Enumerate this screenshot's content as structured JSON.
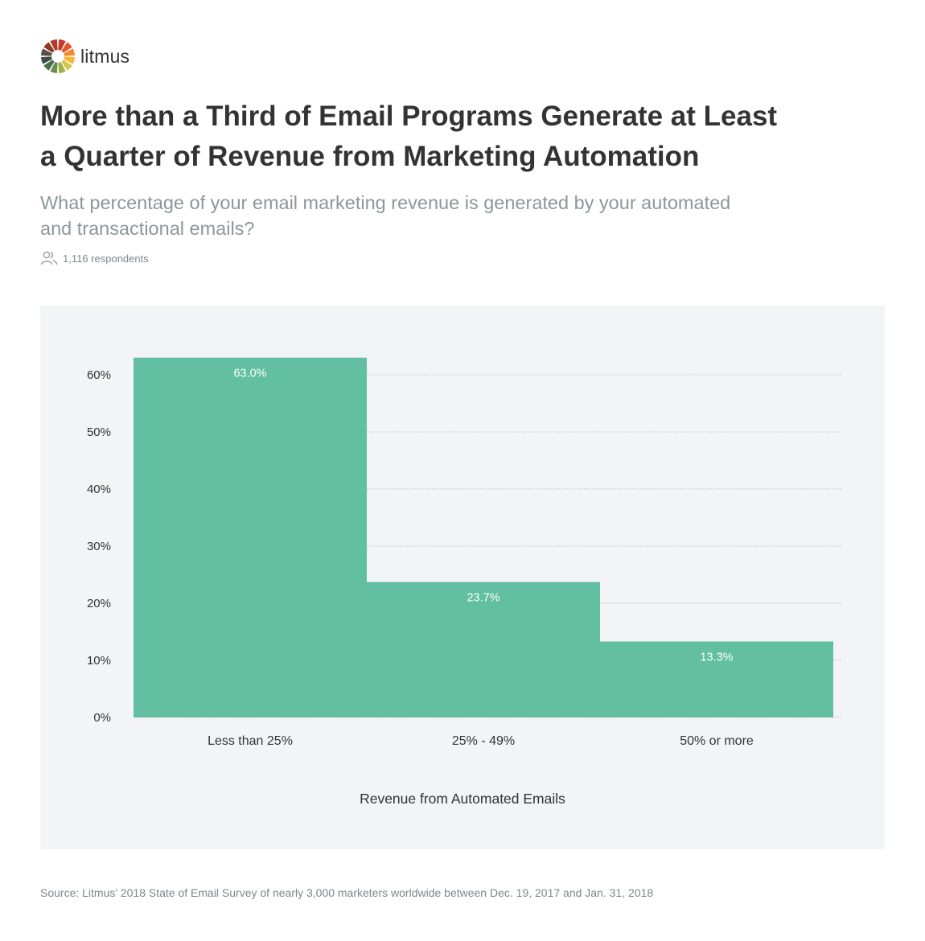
{
  "brand": {
    "name": "litmus",
    "logo_colors": [
      "#c0392b",
      "#e5552d",
      "#f08a2c",
      "#f4b63a",
      "#d8c44a",
      "#9cb146",
      "#6b8e4e",
      "#4f6b49",
      "#3f4f45",
      "#5a4f44",
      "#8a3a2c",
      "#b23a2a"
    ]
  },
  "title_lines": [
    "More than a Third of Email Programs Generate at Least",
    "a Quarter of Revenue from Marketing Automation"
  ],
  "subtitle_lines": [
    "What percentage of your email marketing revenue is generated by your automated",
    "and transactional emails?"
  ],
  "respondents": {
    "icon": "users-icon",
    "text": "1,116 respondents"
  },
  "chart_data": {
    "type": "bar",
    "title": "More than a Third of Email Programs Generate at Least a Quarter of Revenue from Marketing Automation",
    "categories": [
      "Less than 25%",
      "25% - 49%",
      "50% or more"
    ],
    "values": [
      63.0,
      23.7,
      13.3
    ],
    "data_labels": [
      "63.0%",
      "23.7%",
      "13.3%"
    ],
    "xlabel": "Revenue from Automated Emails",
    "ylabel": "",
    "ylim": [
      0,
      60
    ],
    "y_ticks": [
      0,
      10,
      20,
      30,
      40,
      50,
      60
    ],
    "y_tick_labels": [
      "0%",
      "10%",
      "20%",
      "30%",
      "40%",
      "50%",
      "60%"
    ],
    "grid": true,
    "bar_color": "#62bfa0",
    "label_color": "#ffffff"
  },
  "source": "Source: Litmus’ 2018 State of Email Survey of nearly 3,000 marketers worldwide between Dec. 19, 2017 and Jan. 31, 2018"
}
